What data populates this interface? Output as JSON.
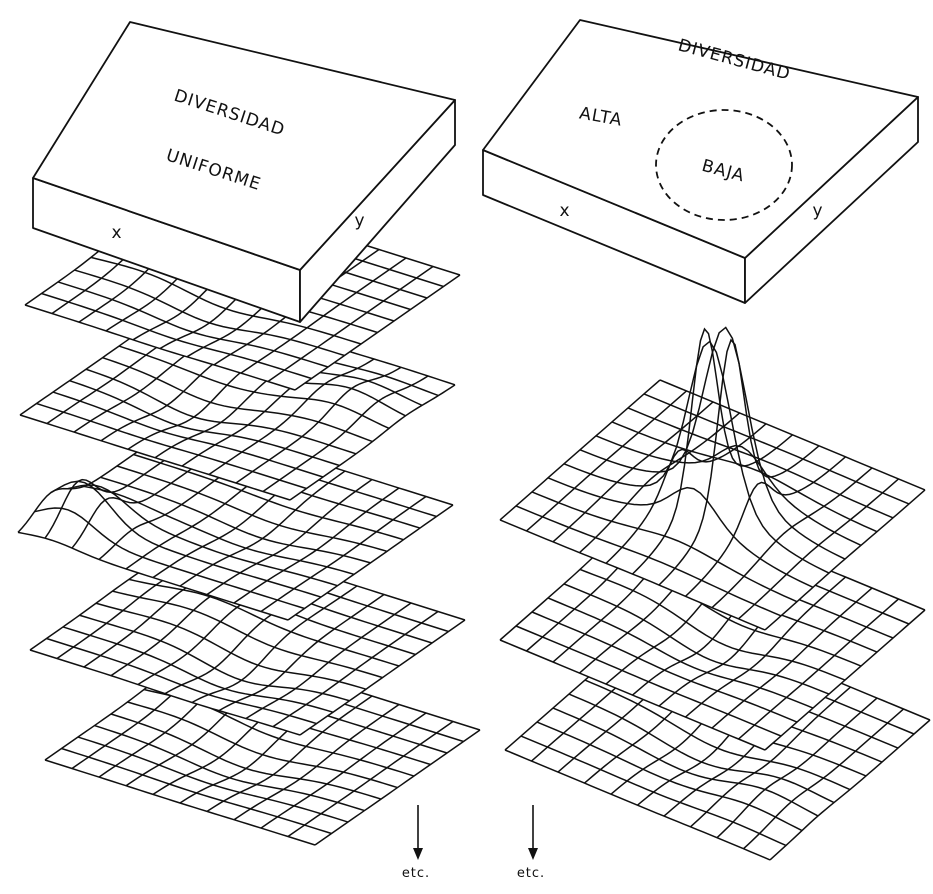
{
  "left_panel": {
    "label_line1": "DIVERSIDAD",
    "label_line2": "UNIFORME",
    "axis_x": "x",
    "axis_y": "y"
  },
  "right_panel": {
    "title": "DIVERSIDAD",
    "high_label": "ALTA",
    "low_label": "BAJA",
    "axis_x": "x",
    "axis_y": "y"
  },
  "continuation": [
    "etc.",
    "etc."
  ]
}
